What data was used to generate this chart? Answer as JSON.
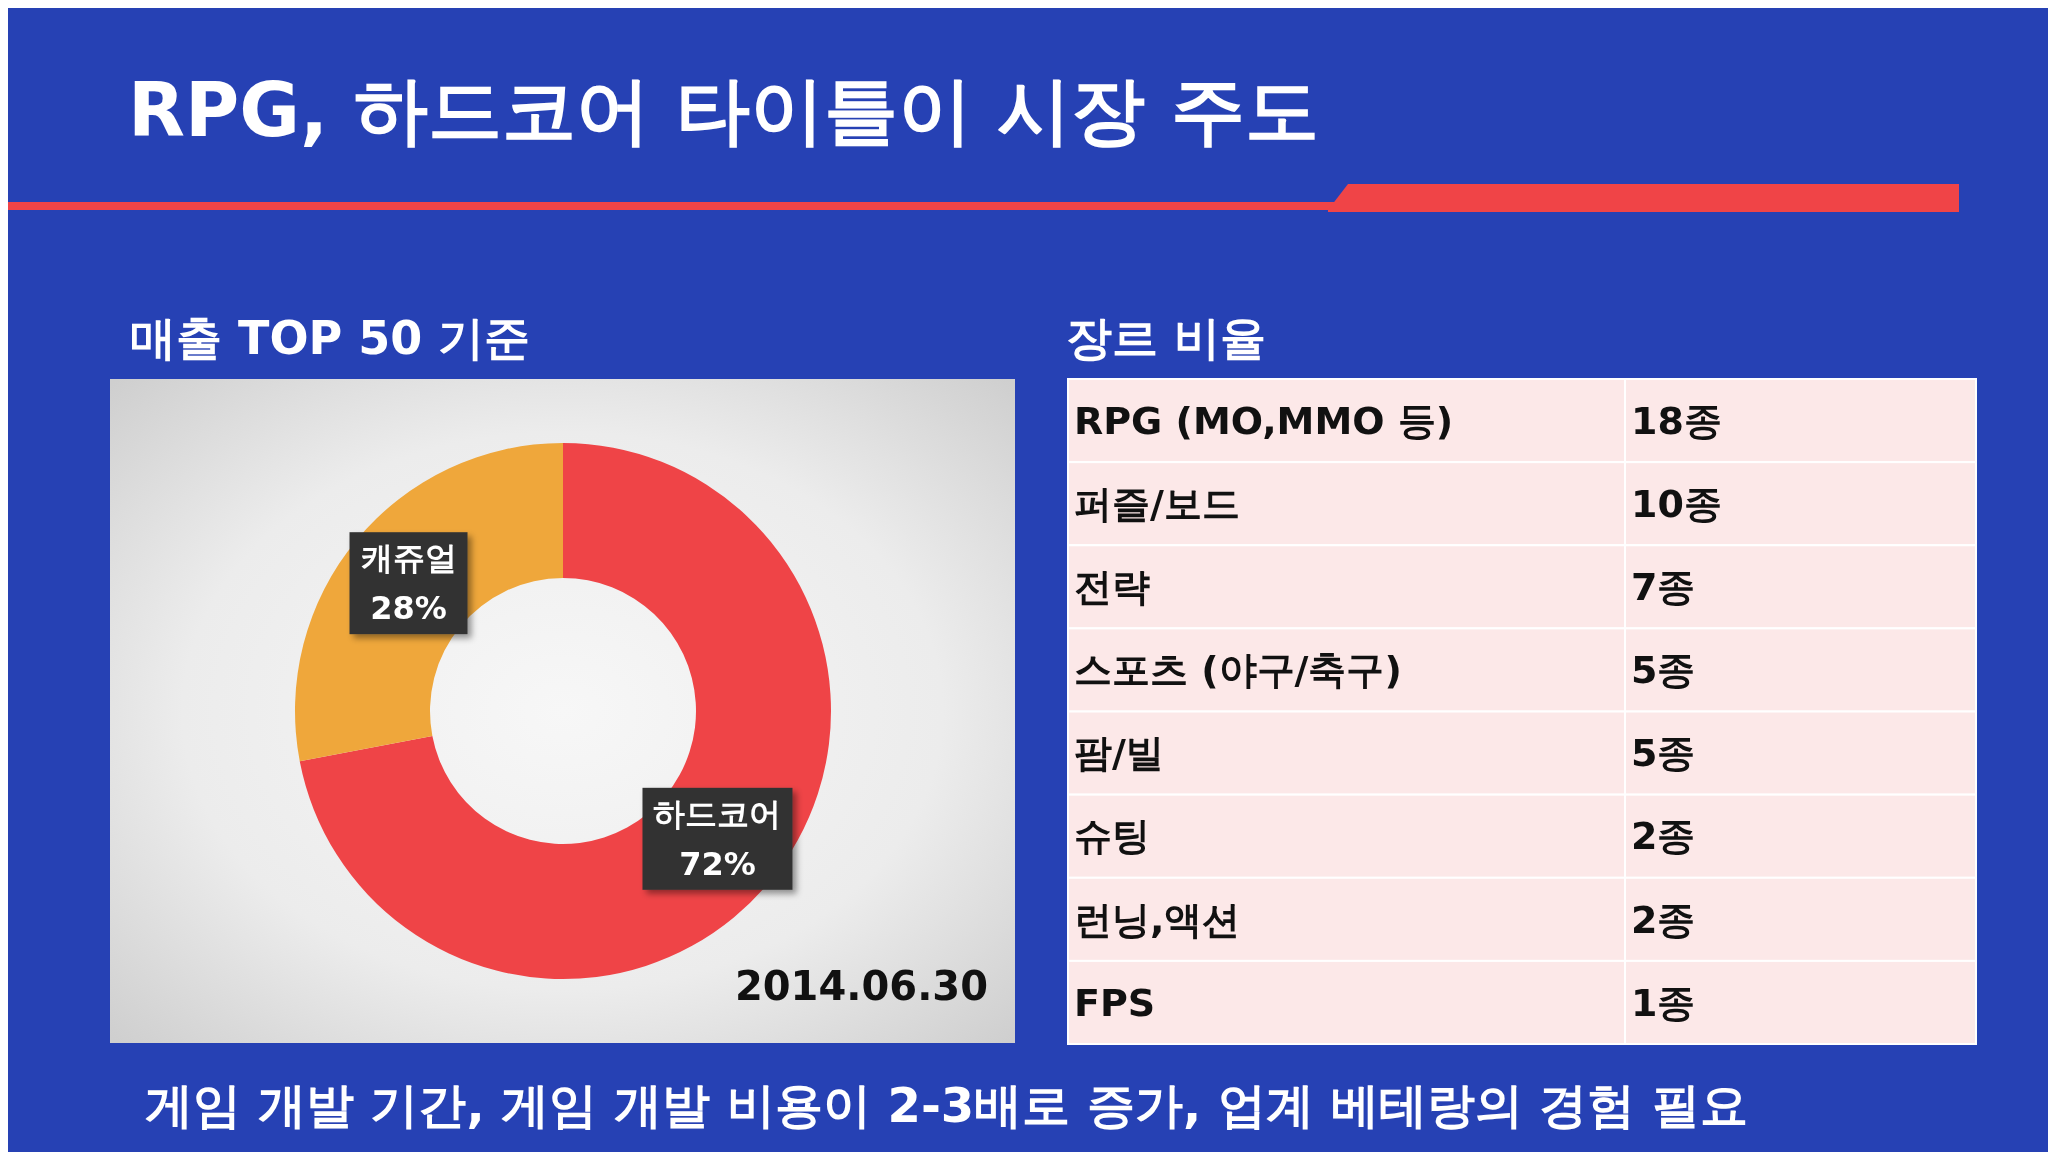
{
  "chart_data": [
    {
      "type": "donut",
      "title": "RPG, 하드코어 타이틀이 시장 주도",
      "subtitle": "매출 TOP 50 기준",
      "categories": [
        "하드코어",
        "캐쥬얼"
      ],
      "values": [
        72,
        28
      ],
      "colors": [
        "#ef4447",
        "#efa73b"
      ],
      "value_labels": [
        "72%",
        "28%"
      ],
      "annotations": [
        "2014.06.30",
        "게임 개발 기간, 게임 개발 비용이 2-3배로 증가, 업계 베테랑의 경험 필요"
      ]
    },
    {
      "type": "other",
      "title": "장르 비율",
      "categories": [
        "RPG (MO,MMO 등)",
        "퍼즐/보드",
        "전략",
        "스포츠 (야구/축구)",
        "팜/빌",
        "슈팅",
        "런닝,액션",
        "FPS"
      ],
      "values": [
        18,
        10,
        7,
        5,
        5,
        2,
        2,
        1
      ],
      "value_labels": [
        "18종",
        "10종",
        "7종",
        "5종",
        "5종",
        "2종",
        "2종",
        "1종"
      ]
    }
  ]
}
